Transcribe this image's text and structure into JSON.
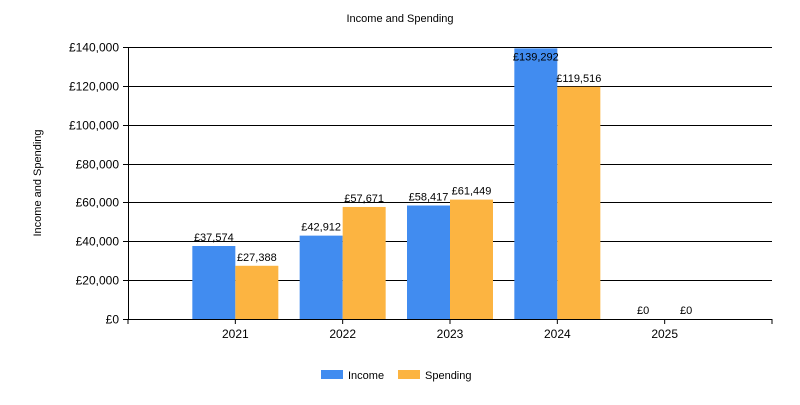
{
  "chart_data": {
    "type": "bar",
    "title": "Income and Spending",
    "xlabel": "",
    "ylabel": "Income and Spending",
    "categories": [
      "2021",
      "2022",
      "2023",
      "2024",
      "2025"
    ],
    "series": [
      {
        "name": "Income",
        "color": "#418CF0",
        "values": [
          37574,
          42912,
          58417,
          139292,
          0
        ],
        "labels": [
          "£37,574",
          "£42,912",
          "£58,417",
          "£139,292",
          "£0"
        ]
      },
      {
        "name": "Spending",
        "color": "#FCB441",
        "values": [
          27388,
          57671,
          61449,
          119516,
          0
        ],
        "labels": [
          "£27,388",
          "£57,671",
          "£61,449",
          "£119,516",
          "£0"
        ]
      }
    ],
    "ylim": [
      0,
      140000
    ],
    "yticks": [
      0,
      20000,
      40000,
      60000,
      80000,
      100000,
      120000,
      140000
    ],
    "ytick_labels": [
      "£0",
      "£20,000",
      "£40,000",
      "£60,000",
      "£80,000",
      "£100,000",
      "£120,000",
      "£140,000"
    ],
    "grid": true,
    "legend": "bottom-center"
  }
}
